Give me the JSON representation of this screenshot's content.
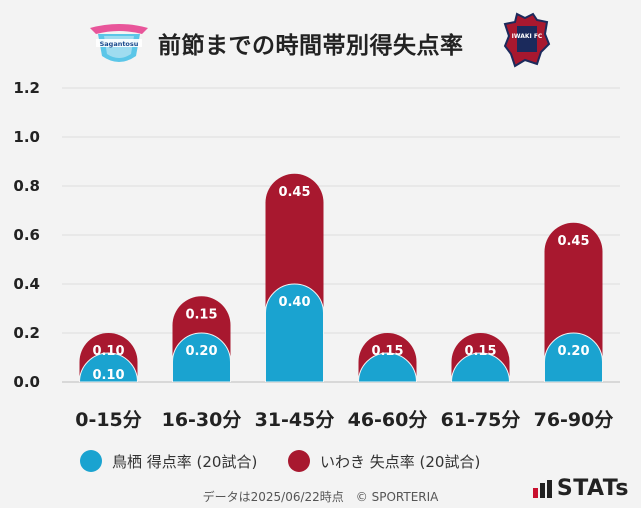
{
  "header": {
    "title": "前節までの時間帯別得失点率",
    "home_logo_text": "Sagantosu",
    "away_logo_text": "IWAKI FC"
  },
  "chart_data": {
    "type": "bar",
    "stacked": true,
    "categories": [
      "0-15分",
      "16-30分",
      "31-45分",
      "46-60分",
      "61-75分",
      "76-90分"
    ],
    "series": [
      {
        "name": "鳥栖 得点率 (20試合)",
        "values": [
          0.1,
          0.2,
          0.4,
          0.05,
          0.05,
          0.2
        ],
        "labels": [
          "0.10",
          "0.20",
          "0.40",
          "",
          "",
          "0.20"
        ],
        "color": "#1aa3d0"
      },
      {
        "name": "いわき 失点率 (20試合)",
        "values": [
          0.1,
          0.15,
          0.45,
          0.15,
          0.15,
          0.45
        ],
        "labels": [
          "0.10",
          "0.15",
          "0.45",
          "0.15",
          "0.15",
          "0.45"
        ],
        "color": "#a8182f"
      }
    ],
    "yticks": [
      "0.0",
      "0.2",
      "0.4",
      "0.6",
      "0.8",
      "1.0",
      "1.2"
    ],
    "ylim": [
      0,
      1.2
    ],
    "grid": true,
    "legend_position": "bottom"
  },
  "legend": {
    "home_label": "鳥栖 得点率 (20試合)",
    "away_label": "いわき 失点率 (20試合)",
    "home_color": "#1aa3d0",
    "away_color": "#a8182f"
  },
  "footer": {
    "credit": "データは2025/06/22時点　© SPORTERIA",
    "brand": "STATs"
  }
}
